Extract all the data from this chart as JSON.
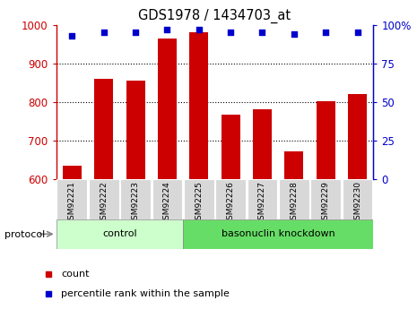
{
  "title": "GDS1978 / 1434703_at",
  "samples": [
    "GSM92221",
    "GSM92222",
    "GSM92223",
    "GSM92224",
    "GSM92225",
    "GSM92226",
    "GSM92227",
    "GSM92228",
    "GSM92229",
    "GSM92230"
  ],
  "bar_values": [
    635,
    860,
    855,
    965,
    980,
    768,
    782,
    672,
    803,
    820
  ],
  "percentile_values": [
    93,
    95,
    95,
    97,
    97,
    95,
    95,
    94,
    95,
    95
  ],
  "bar_color": "#cc0000",
  "dot_color": "#0000cc",
  "ylim_left": [
    600,
    1000
  ],
  "ylim_right": [
    0,
    100
  ],
  "yticks_left": [
    600,
    700,
    800,
    900,
    1000
  ],
  "yticks_right": [
    0,
    25,
    50,
    75,
    100
  ],
  "yticklabels_right": [
    "0",
    "25",
    "50",
    "75",
    "100%"
  ],
  "ctrl_color": "#ccffcc",
  "bass_color": "#66dd66",
  "bar_bottom": 600,
  "n_control": 4,
  "n_bass": 6
}
